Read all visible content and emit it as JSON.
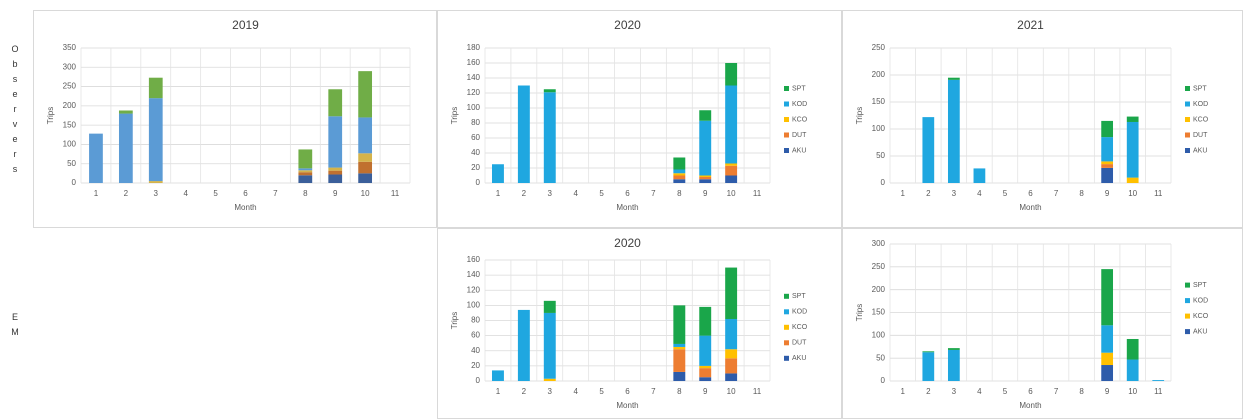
{
  "row_labels": [
    "Observers",
    "EM"
  ],
  "chart_data": [
    {
      "type": "bar",
      "stacked": true,
      "title": "2019",
      "x_label": "Month",
      "y_label": "Trips",
      "categories": [
        "1",
        "2",
        "3",
        "4",
        "5",
        "6",
        "7",
        "8",
        "9",
        "10",
        "11"
      ],
      "ylim": [
        0,
        350
      ],
      "yticks": [
        0,
        50,
        100,
        150,
        200,
        250,
        300,
        350
      ],
      "grid": true,
      "series": [
        {
          "color": "#3b5f9a",
          "values": [
            0,
            0,
            0,
            0,
            0,
            0,
            0,
            20,
            22,
            25,
            0
          ]
        },
        {
          "color": "#c0702f",
          "values": [
            0,
            0,
            0,
            0,
            0,
            0,
            0,
            8,
            10,
            30,
            0
          ]
        },
        {
          "color": "#d4b34a",
          "values": [
            0,
            0,
            5,
            0,
            0,
            0,
            0,
            5,
            8,
            22,
            0
          ]
        },
        {
          "color": "#5b9bd5",
          "values": [
            128,
            180,
            215,
            0,
            0,
            0,
            0,
            5,
            133,
            93,
            0
          ]
        },
        {
          "color": "#70ad47",
          "values": [
            0,
            8,
            53,
            0,
            0,
            0,
            0,
            49,
            70,
            120,
            0
          ]
        }
      ]
    },
    {
      "type": "bar",
      "stacked": true,
      "title": "2020",
      "x_label": "Month",
      "y_label": "Trips",
      "legend": "right",
      "categories": [
        "1",
        "2",
        "3",
        "4",
        "5",
        "6",
        "7",
        "8",
        "9",
        "10",
        "11"
      ],
      "ylim": [
        0,
        180
      ],
      "yticks": [
        0,
        20,
        40,
        60,
        80,
        100,
        120,
        140,
        160,
        180
      ],
      "grid": true,
      "series": [
        {
          "name": "AKU",
          "color": "#2e5caa",
          "values": [
            0,
            0,
            0,
            0,
            0,
            0,
            0,
            5,
            5,
            10,
            0
          ]
        },
        {
          "name": "DUT",
          "color": "#ed7d31",
          "values": [
            0,
            0,
            0,
            0,
            0,
            0,
            0,
            5,
            3,
            13,
            0
          ]
        },
        {
          "name": "KCO",
          "color": "#ffc000",
          "values": [
            0,
            0,
            0,
            0,
            0,
            0,
            0,
            3,
            2,
            3,
            0
          ]
        },
        {
          "name": "KOD",
          "color": "#1fa7e0",
          "values": [
            25,
            130,
            121,
            0,
            0,
            0,
            0,
            5,
            73,
            104,
            0
          ]
        },
        {
          "name": "SPT",
          "color": "#1aa64a",
          "values": [
            0,
            0,
            4,
            0,
            0,
            0,
            0,
            16,
            14,
            30,
            0
          ]
        }
      ]
    },
    {
      "type": "bar",
      "stacked": true,
      "title": "2021",
      "x_label": "Month",
      "y_label": "Trips",
      "legend": "right",
      "categories": [
        "1",
        "2",
        "3",
        "4",
        "5",
        "6",
        "7",
        "8",
        "9",
        "10",
        "11"
      ],
      "ylim": [
        0,
        250
      ],
      "yticks": [
        0,
        50,
        100,
        150,
        200,
        250
      ],
      "grid": true,
      "series": [
        {
          "name": "AKU",
          "color": "#2e5caa",
          "values": [
            0,
            0,
            0,
            0,
            0,
            0,
            0,
            0,
            28,
            0,
            0
          ]
        },
        {
          "name": "DUT",
          "color": "#ed7d31",
          "values": [
            0,
            0,
            0,
            0,
            0,
            0,
            0,
            0,
            7,
            0,
            0
          ]
        },
        {
          "name": "KCO",
          "color": "#ffc000",
          "values": [
            0,
            0,
            0,
            0,
            0,
            0,
            0,
            0,
            5,
            10,
            0
          ]
        },
        {
          "name": "KOD",
          "color": "#1fa7e0",
          "values": [
            0,
            122,
            191,
            27,
            0,
            0,
            0,
            0,
            45,
            103,
            0
          ]
        },
        {
          "name": "SPT",
          "color": "#1aa64a",
          "values": [
            0,
            0,
            4,
            0,
            0,
            0,
            0,
            0,
            30,
            10,
            0
          ]
        }
      ]
    },
    {
      "type": "bar",
      "stacked": true,
      "title": "2020",
      "x_label": "Month",
      "y_label": "Trips",
      "legend": "right",
      "categories": [
        "1",
        "2",
        "3",
        "4",
        "5",
        "6",
        "7",
        "8",
        "9",
        "10",
        "11"
      ],
      "ylim": [
        0,
        160
      ],
      "yticks": [
        0,
        20,
        40,
        60,
        80,
        100,
        120,
        140,
        160
      ],
      "grid": true,
      "series": [
        {
          "name": "AKU",
          "color": "#2e5caa",
          "values": [
            0,
            0,
            0,
            0,
            0,
            0,
            0,
            12,
            5,
            10,
            0
          ]
        },
        {
          "name": "DUT",
          "color": "#ed7d31",
          "values": [
            0,
            0,
            0,
            0,
            0,
            0,
            0,
            30,
            12,
            20,
            0
          ]
        },
        {
          "name": "KCO",
          "color": "#ffc000",
          "values": [
            0,
            0,
            3,
            0,
            0,
            0,
            0,
            3,
            3,
            12,
            0
          ]
        },
        {
          "name": "KOD",
          "color": "#1fa7e0",
          "values": [
            14,
            94,
            87,
            0,
            0,
            0,
            0,
            4,
            40,
            40,
            0
          ]
        },
        {
          "name": "SPT",
          "color": "#1aa64a",
          "values": [
            0,
            0,
            16,
            0,
            0,
            0,
            0,
            51,
            38,
            68,
            0
          ]
        }
      ]
    },
    {
      "type": "bar",
      "stacked": true,
      "x_label": "Month",
      "y_label": "Trips",
      "legend": "right",
      "categories": [
        "1",
        "2",
        "3",
        "4",
        "5",
        "6",
        "7",
        "8",
        "9",
        "10",
        "11"
      ],
      "ylim": [
        0,
        300
      ],
      "yticks": [
        0,
        50,
        100,
        150,
        200,
        250,
        300
      ],
      "grid": true,
      "series": [
        {
          "name": "AKU",
          "color": "#2e5caa",
          "values": [
            0,
            0,
            0,
            0,
            0,
            0,
            0,
            0,
            35,
            0,
            0
          ]
        },
        {
          "name": "KCO",
          "color": "#ffc000",
          "values": [
            0,
            0,
            0,
            0,
            0,
            0,
            0,
            0,
            27,
            0,
            0
          ]
        },
        {
          "name": "KOD",
          "color": "#1fa7e0",
          "values": [
            0,
            63,
            68,
            0,
            0,
            0,
            0,
            0,
            60,
            47,
            2
          ]
        },
        {
          "name": "SPT",
          "color": "#1aa64a",
          "values": [
            0,
            2,
            4,
            0,
            0,
            0,
            0,
            0,
            123,
            45,
            0
          ]
        }
      ]
    }
  ]
}
